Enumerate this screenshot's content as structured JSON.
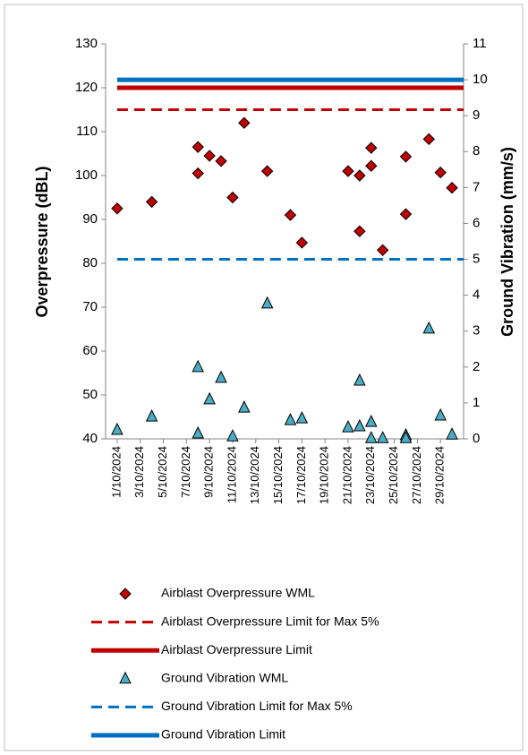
{
  "chart_data": {
    "type": "scatter",
    "y_label": "Overpressure (dBL)",
    "y2_label": "Ground Vibration (mm/s)",
    "xlim": [
      "2024-09-30",
      "2024-10-31"
    ],
    "xticks": [
      {
        "value": "2024-10-01",
        "label": "1/10/2024"
      },
      {
        "value": "2024-10-03",
        "label": "3/10/2024"
      },
      {
        "value": "2024-10-05",
        "label": "5/10/2024"
      },
      {
        "value": "2024-10-07",
        "label": "7/10/2024"
      },
      {
        "value": "2024-10-09",
        "label": "9/10/2024"
      },
      {
        "value": "2024-10-11",
        "label": "11/10/2024"
      },
      {
        "value": "2024-10-13",
        "label": "13/10/2024"
      },
      {
        "value": "2024-10-15",
        "label": "15/10/2024"
      },
      {
        "value": "2024-10-17",
        "label": "17/10/2024"
      },
      {
        "value": "2024-10-19",
        "label": "19/10/2024"
      },
      {
        "value": "2024-10-21",
        "label": "21/10/2024"
      },
      {
        "value": "2024-10-23",
        "label": "23/10/2024"
      },
      {
        "value": "2024-10-25",
        "label": "25/10/2024"
      },
      {
        "value": "2024-10-27",
        "label": "27/10/2024"
      },
      {
        "value": "2024-10-29",
        "label": "29/10/2024"
      }
    ],
    "ylim": [
      40,
      130
    ],
    "yticks": [
      40,
      50,
      60,
      70,
      80,
      90,
      100,
      110,
      120,
      130
    ],
    "y2lim": [
      0,
      11
    ],
    "y2ticks": [
      0,
      1,
      2,
      3,
      4,
      5,
      6,
      7,
      8,
      9,
      10,
      11
    ],
    "grid": false,
    "legend": "bottom",
    "series": [
      {
        "name": "Airblast Overpressure WML",
        "style": "diamond",
        "color": "#c00000",
        "x": [
          "2024-10-01",
          "2024-10-04",
          "2024-10-08",
          "2024-10-08",
          "2024-10-09",
          "2024-10-10",
          "2024-10-11",
          "2024-10-12",
          "2024-10-14",
          "2024-10-16",
          "2024-10-17",
          "2024-10-21",
          "2024-10-22",
          "2024-10-22",
          "2024-10-23",
          "2024-10-23",
          "2024-10-24",
          "2024-10-26",
          "2024-10-26",
          "2024-10-28",
          "2024-10-29",
          "2024-10-30"
        ],
        "values": [
          92.5,
          94,
          106.5,
          100.5,
          104.5,
          103.3,
          95,
          112,
          101,
          91,
          84.7,
          101,
          100,
          87.3,
          106.3,
          102.2,
          83,
          104.3,
          91.2,
          108.3,
          100.7,
          97.2
        ]
      },
      {
        "name": "Airblast Overpressure Limit for Max 5%",
        "style": "dash",
        "color": "#c00000",
        "x": [
          "2024-10-01",
          "2024-10-31"
        ],
        "values": [
          115,
          115
        ]
      },
      {
        "name": "Airblast Overpressure Limit",
        "style": "solid",
        "color": "#c00000",
        "x": [
          "2024-10-01",
          "2024-10-31"
        ],
        "values": [
          120,
          120
        ]
      },
      {
        "name": "Ground Vibration WML",
        "style": "triangle",
        "color": "#4bacc6",
        "axis": "y2",
        "x": [
          "2024-10-01",
          "2024-10-04",
          "2024-10-08",
          "2024-10-08",
          "2024-10-09",
          "2024-10-10",
          "2024-10-11",
          "2024-10-12",
          "2024-10-14",
          "2024-10-16",
          "2024-10-17",
          "2024-10-21",
          "2024-10-22",
          "2024-10-22",
          "2024-10-23",
          "2024-10-23",
          "2024-10-24",
          "2024-10-26",
          "2024-10-26",
          "2024-10-28",
          "2024-10-29",
          "2024-10-30"
        ],
        "values": [
          0.25,
          0.62,
          2.0,
          0.15,
          1.1,
          1.7,
          0.07,
          0.87,
          3.77,
          0.52,
          0.57,
          0.32,
          1.62,
          0.35,
          0.47,
          0.02,
          0.02,
          0.1,
          0.02,
          3.07,
          0.65,
          0.12
        ]
      },
      {
        "name": "Ground Vibration Limit for Max 5%",
        "style": "dash",
        "color": "#0070c0",
        "axis": "y2",
        "x": [
          "2024-10-01",
          "2024-10-31"
        ],
        "values": [
          5,
          5
        ]
      },
      {
        "name": "Ground Vibration Limit",
        "style": "solid",
        "color": "#0070c0",
        "axis": "y2",
        "x": [
          "2024-10-01",
          "2024-10-31"
        ],
        "values": [
          10,
          10
        ]
      }
    ]
  }
}
